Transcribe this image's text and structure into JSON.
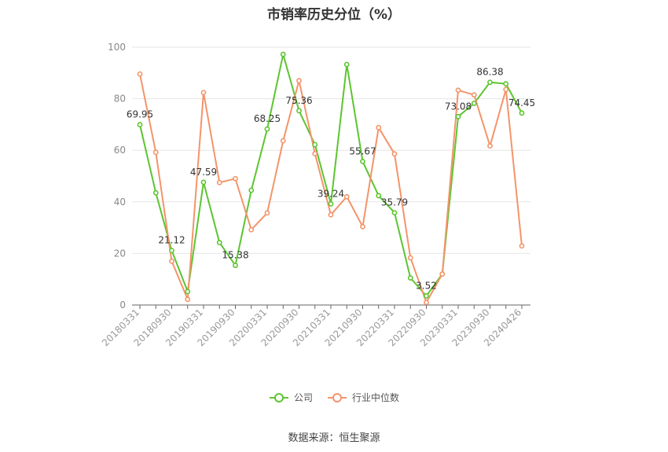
{
  "chart_data": {
    "type": "line",
    "title": "市销率历史分位（%）",
    "xlabel": "",
    "ylabel": "",
    "ylim": [
      0,
      100
    ],
    "yticks": [
      0,
      20,
      40,
      60,
      80,
      100
    ],
    "grid": true,
    "legend_position": "bottom",
    "x_tick_labels": [
      "20180331",
      "20180930",
      "20190331",
      "20190930",
      "20200331",
      "20200930",
      "20210331",
      "20210930",
      "20220331",
      "20220930",
      "20230331",
      "20230930",
      "20240426"
    ],
    "x": [
      "20180331",
      "20180630",
      "20180930",
      "20181231",
      "20190331",
      "20190630",
      "20190930",
      "20191231",
      "20200331",
      "20200630",
      "20200930",
      "20201231",
      "20210331",
      "20210630",
      "20210930",
      "20211231",
      "20220331",
      "20220630",
      "20220930",
      "20221231",
      "20230331",
      "20230630",
      "20230930",
      "20231231",
      "20240426"
    ],
    "series": [
      {
        "name": "公司",
        "color": "#5cc530",
        "values": [
          69.95,
          43.5,
          21.12,
          5.2,
          47.59,
          24.2,
          15.38,
          44.5,
          68.25,
          97.2,
          75.36,
          62.2,
          39.24,
          93.3,
          55.67,
          42.4,
          35.79,
          10.5,
          3.52,
          12.0,
          73.08,
          78.2,
          86.38,
          85.8,
          74.45
        ],
        "data_labels": {
          "0": "69.95",
          "2": "21.12",
          "4": "47.59",
          "6": "15.38",
          "8": "68.25",
          "10": "75.36",
          "12": "39.24",
          "14": "55.67",
          "16": "35.79",
          "18": "3.52",
          "20": "73.08",
          "22": "86.38",
          "24": "74.45"
        }
      },
      {
        "name": "行业中位数",
        "color": "#f4946a",
        "values": [
          89.6,
          59.2,
          17.0,
          2.2,
          82.4,
          47.5,
          49.0,
          29.2,
          35.7,
          63.7,
          87.0,
          58.7,
          35.0,
          42.0,
          30.4,
          68.8,
          58.6,
          18.3,
          1.0,
          12.0,
          83.3,
          81.5,
          61.7,
          83.6,
          22.9
        ]
      }
    ]
  },
  "source_note": "数据来源：恒生聚源"
}
